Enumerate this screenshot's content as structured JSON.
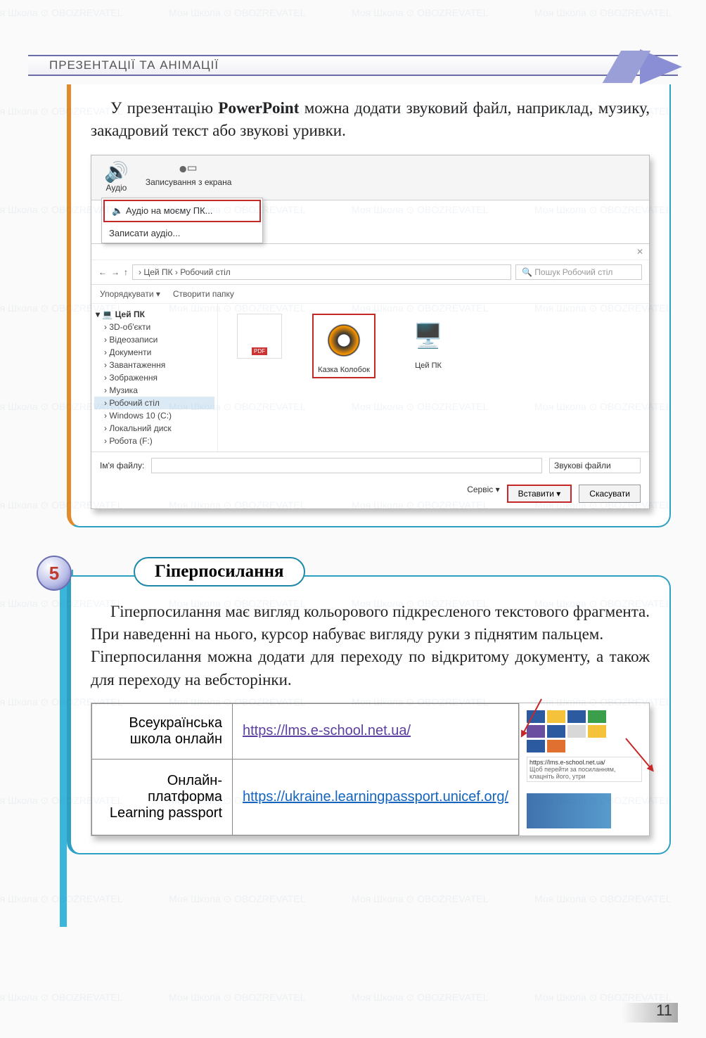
{
  "header": {
    "title": "ПРЕЗЕНТАЦІЇ ТА АНІМАЦІЇ"
  },
  "section1": {
    "para_before_bold": "У презентацію ",
    "para_bold": "PowerPoint",
    "para_after_bold": " можна додати звуковий файл, наприклад, музику, закадровий текст або зву­кові уривки."
  },
  "ribbon": {
    "audio": "Аудіо",
    "record": "Записування з екрана",
    "dd_item1": "Аудіо на моєму ПК...",
    "dd_item2": "Записати аудіо..."
  },
  "explorer": {
    "path": "› Цей ПК › Робочий стіл",
    "search_placeholder": "Пошук Робочий стіл",
    "organize": "Упорядкувати ▾",
    "newfolder": "Створити папку",
    "tree": {
      "root": "Цей ПК",
      "items": [
        "3D-об'єкти",
        "Відеозаписи",
        "Документи",
        "Завантаження",
        "Зображення",
        "Музика",
        "Робочий стіл",
        "Windows 10 (C:)",
        "Локальний диск",
        "Робота (F:)"
      ]
    },
    "files": {
      "f1": "",
      "f2": "Казка Колобок",
      "f3": "Цей ПК"
    },
    "filename_label": "Ім'я файлу:",
    "filter": "Звукові файли",
    "tools": "Сервіс ▾",
    "insert": "Вставити ▾",
    "cancel": "Скасувати"
  },
  "section2": {
    "badge": "5",
    "title": "Гіперпосилання",
    "para": "Гіперпосилання має вигляд кольорового підкресле­ного текстового фрагмента. При наведенні на нього, курсор набуває вигляду руки з піднятим пальцем.\n   Гіперпосилання можна додати для переходу по від­критому документу, а також для переходу на вебсто­рінки."
  },
  "links_table": {
    "r1_label": "Всеукраїнська школа онлайн",
    "r1_url": "https://lms.e-school.net.ua/",
    "r2_label": "Онлайн-платформа Learning passport",
    "r2_url": "https://ukraine.learningpassport.unicef.org/",
    "tooltip_url": "https://lms.e-school.net.ua/",
    "tooltip_text": "Щоб перейти за посиланням, клацніть його, утри"
  },
  "tile_colors": [
    "#2b5aa0",
    "#f5c33b",
    "#2b5aa0",
    "#3b9e4a",
    "#6a4fa0",
    "#2b5aa0",
    "#d8d8d8",
    "#f5c33b",
    "#2b5aa0",
    "#e07030"
  ],
  "page_number": "11",
  "watermark_text": "Моя Школа ⊙ OBOZREVATEL"
}
